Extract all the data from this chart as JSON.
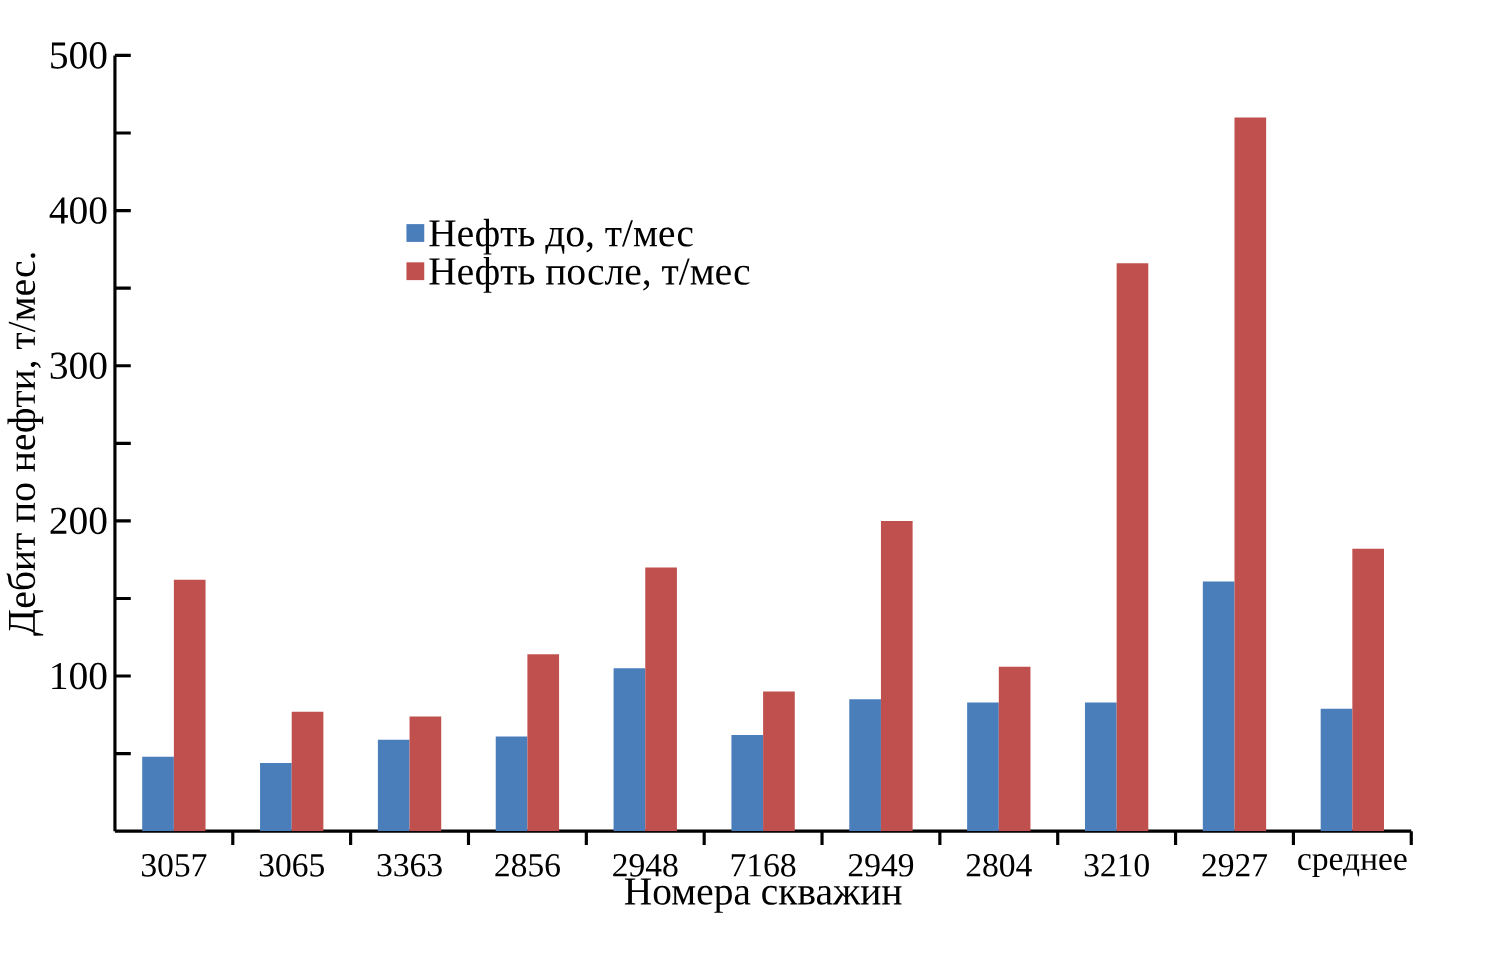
{
  "chart_data": {
    "type": "bar",
    "xlabel": "Номера скважин",
    "ylabel": "Дебит по нефти, т/мес.",
    "categories": [
      "3057",
      "3065",
      "3363",
      "2856",
      "2948",
      "7168",
      "2949",
      "2804",
      "3210",
      "2927",
      "среднее"
    ],
    "series": [
      {
        "name": "Нефть до, т/мес",
        "color": "#4a7ebb",
        "values": [
          48,
          44,
          59,
          61,
          105,
          62,
          85,
          83,
          83,
          161,
          79
        ]
      },
      {
        "name": "Нефть после, т/мес",
        "color": "#c0504d",
        "values": [
          162,
          77,
          74,
          114,
          170,
          90,
          200,
          106,
          366,
          460,
          182
        ]
      }
    ],
    "ylim": [
      0,
      500
    ],
    "yticks": [
      {
        "value": 50,
        "label": null
      },
      100,
      {
        "value": 150,
        "label": null
      },
      200,
      {
        "value": 250,
        "label": null
      },
      300,
      {
        "value": 350,
        "label": null
      },
      400,
      {
        "value": 450,
        "label": null
      },
      500
    ],
    "grid": false,
    "legend": "top left"
  }
}
